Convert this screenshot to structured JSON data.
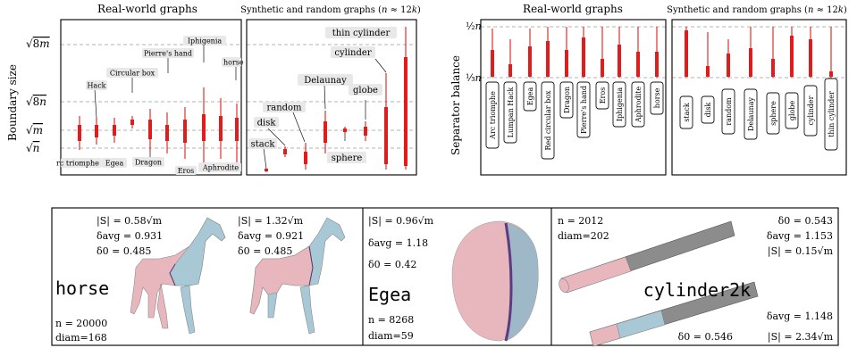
{
  "figure_top": {
    "boundary": {
      "ylabel": "Boundary size",
      "ytick_labels": [
        "√8m",
        "√8n",
        "√m",
        "√n"
      ],
      "real_world_title": "Real-world graphs",
      "synthetic_title": "Synthetic and random graphs (n ≈ 12k)",
      "real_world_labels": [
        "Hack",
        "Circular box",
        "Pierre's hand",
        "Iphigenia",
        "horse",
        "Arc triomphe",
        "Egea",
        "Dragon",
        "Eros",
        "Aphrodite"
      ],
      "synthetic_labels": [
        "stack",
        "disk",
        "random",
        "Delaunay",
        "sphere",
        "globe",
        "cylinder",
        "thin cylinder"
      ]
    },
    "separator": {
      "ylabel": "Separator balance",
      "ytick_labels": [
        "½n",
        "⅓n"
      ],
      "real_world_title": "Real-world graphs",
      "synthetic_title": "Synthetic and random graphs (n ≈ 12k)",
      "real_world_labels": [
        "Arc triomphe",
        "Lumpan Hack",
        "Egea",
        "Red circular box",
        "Dragon",
        "Pierre's hand",
        "Eros",
        "Iphigenia",
        "Aphrodite",
        "horse"
      ],
      "synthetic_labels": [
        "stack",
        "disk",
        "random",
        "Delaunay",
        "sphere",
        "globe",
        "cylinder",
        "thin cylinder"
      ]
    }
  },
  "figure_bottom": {
    "horse": {
      "name": "horse",
      "left_metrics": [
        "|S| = 0.58√m",
        "δavg = 0.931",
        "δ0 = 0.485"
      ],
      "right_metrics": [
        "|S| = 1.32√m",
        "δavg = 0.921",
        "δ0 = 0.485"
      ],
      "n": "n = 20000",
      "diam": "diam=168"
    },
    "egea": {
      "name": "Egea",
      "metrics": [
        "|S| = 0.96√m",
        "δavg = 1.18",
        "δ0 = 0.42"
      ],
      "n": "n = 8268",
      "diam": "diam=59"
    },
    "cylinder": {
      "name": "cylinder2k",
      "n": "n = 2012",
      "diam": "diam=202",
      "top_metrics": [
        "δ0 = 0.543",
        "δavg = 1.153",
        "|S| = 0.15√m"
      ],
      "bottom_metrics": [
        "δavg = 1.148",
        "δ0 = 0.546",
        "|S| = 2.34√m"
      ]
    }
  }
}
